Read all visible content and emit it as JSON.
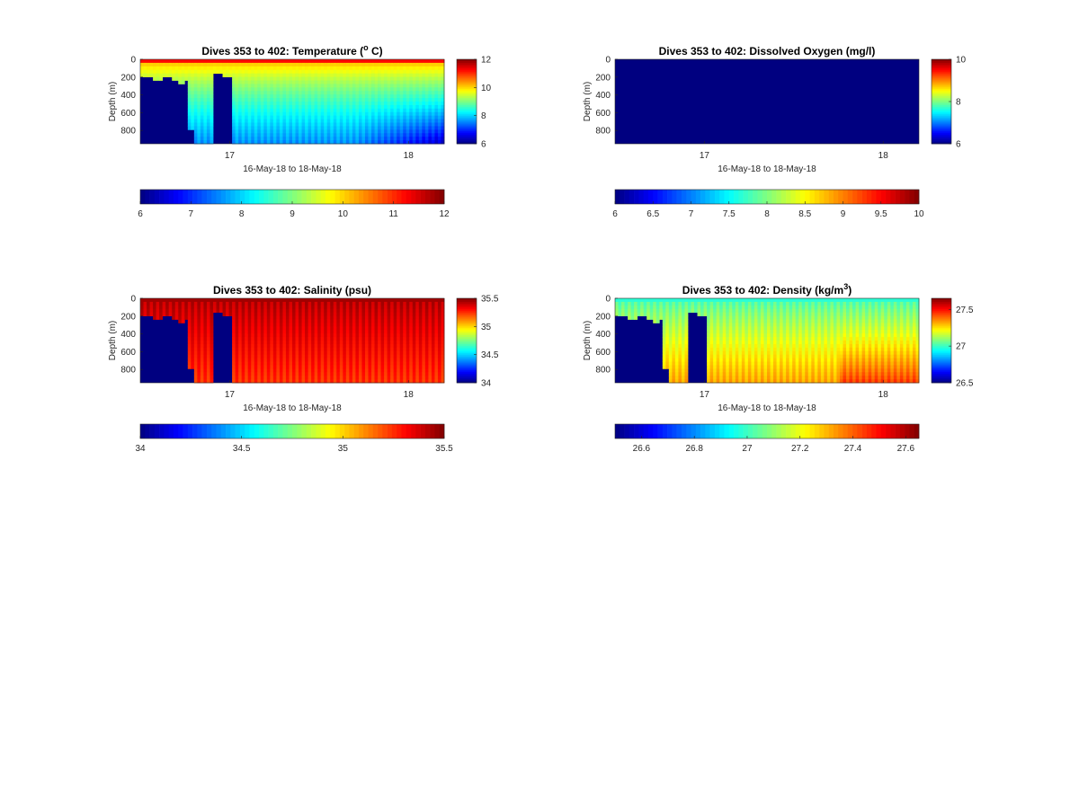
{
  "chart_data": [
    {
      "type": "heatmap",
      "title": "Dives 353 to 402: Temperature (",
      "title_sup": "o",
      "title_tail": " C)",
      "xlabel": "16-May-18 to 18-May-18",
      "ylabel": "Depth (m)",
      "xlim": [
        16.5,
        18.2
      ],
      "ylim": [
        0,
        950
      ],
      "y_reversed": true,
      "xticks": [
        17,
        18
      ],
      "xtick_labels": [
        "17",
        "18"
      ],
      "yticks": [
        0,
        200,
        400,
        600,
        800
      ],
      "ytick_labels": [
        "0",
        "200",
        "400",
        "600",
        "800"
      ],
      "colormap": "jet",
      "clim": [
        6,
        12
      ],
      "colorbar_right_ticks": [
        6,
        8,
        10,
        12
      ],
      "colorbar_right_labels": [
        "6",
        "8",
        "10",
        "12"
      ],
      "colorbar_bottom_ticks": [
        6,
        7,
        8,
        9,
        10,
        11,
        12
      ],
      "colorbar_bottom_labels": [
        "6",
        "7",
        "8",
        "9",
        "10",
        "11",
        "12"
      ],
      "surface_value": 11.0,
      "deep_value": 7.0,
      "field": "temperature"
    },
    {
      "type": "heatmap",
      "title": "Dives 353 to 402: Dissolved Oxygen (mg/l)",
      "title_sup": "",
      "title_tail": "",
      "xlabel": "16-May-18 to 18-May-18",
      "ylabel": "Depth (m)",
      "xlim": [
        16.5,
        18.2
      ],
      "ylim": [
        0,
        950
      ],
      "y_reversed": true,
      "xticks": [
        17,
        18
      ],
      "xtick_labels": [
        "17",
        "18"
      ],
      "yticks": [
        0,
        200,
        400,
        600,
        800
      ],
      "ytick_labels": [
        "0",
        "200",
        "400",
        "600",
        "800"
      ],
      "colormap": "jet",
      "clim": [
        6,
        10
      ],
      "colorbar_right_ticks": [
        6,
        8,
        10
      ],
      "colorbar_right_labels": [
        "6",
        "8",
        "10"
      ],
      "colorbar_bottom_ticks": [
        6,
        6.5,
        7,
        7.5,
        8,
        8.5,
        9,
        9.5,
        10
      ],
      "colorbar_bottom_labels": [
        "6",
        "6.5",
        "7",
        "7.5",
        "8",
        "8.5",
        "9",
        "9.5",
        "10"
      ],
      "uniform_value": 6,
      "field": "oxygen"
    },
    {
      "type": "heatmap",
      "title": "Dives 353 to 402: Salinity (psu)",
      "title_sup": "",
      "title_tail": "",
      "xlabel": "16-May-18 to 18-May-18",
      "ylabel": "Depth (m)",
      "xlim": [
        16.5,
        18.2
      ],
      "ylim": [
        0,
        950
      ],
      "y_reversed": true,
      "xticks": [
        17,
        18
      ],
      "xtick_labels": [
        "17",
        "18"
      ],
      "yticks": [
        0,
        200,
        400,
        600,
        800
      ],
      "ytick_labels": [
        "0",
        "200",
        "400",
        "600",
        "800"
      ],
      "colormap": "jet",
      "clim": [
        34,
        35.5
      ],
      "colorbar_right_ticks": [
        34,
        34.5,
        35,
        35.5
      ],
      "colorbar_right_labels": [
        "34",
        "34.5",
        "35",
        "35.5"
      ],
      "colorbar_bottom_ticks": [
        34,
        34.5,
        35,
        35.5
      ],
      "colorbar_bottom_labels": [
        "34",
        "34.5",
        "35",
        "35.5"
      ],
      "surface_value": 35.35,
      "deep_value": 35.3,
      "field": "salinity"
    },
    {
      "type": "heatmap",
      "title": "Dives 353 to 402: Density (kg/m",
      "title_sup": "3",
      "title_tail": ")",
      "xlabel": "16-May-18 to 18-May-18",
      "ylabel": "Depth (m)",
      "xlim": [
        16.5,
        18.2
      ],
      "ylim": [
        0,
        950
      ],
      "y_reversed": true,
      "xticks": [
        17,
        18
      ],
      "xtick_labels": [
        "17",
        "18"
      ],
      "yticks": [
        0,
        200,
        400,
        600,
        800
      ],
      "ytick_labels": [
        "0",
        "200",
        "400",
        "600",
        "800"
      ],
      "colormap": "jet",
      "clim": [
        26.5,
        27.65
      ],
      "colorbar_right_ticks": [
        26.5,
        27,
        27.5
      ],
      "colorbar_right_labels": [
        "26.5",
        "27",
        "27.5"
      ],
      "colorbar_bottom_ticks": [
        26.6,
        26.8,
        27,
        27.2,
        27.4,
        27.6
      ],
      "colorbar_bottom_labels": [
        "26.6",
        "26.8",
        "27",
        "27.2",
        "27.4",
        "27.6"
      ],
      "surface_value": 27.05,
      "deep_value": 27.35,
      "field": "density"
    }
  ]
}
